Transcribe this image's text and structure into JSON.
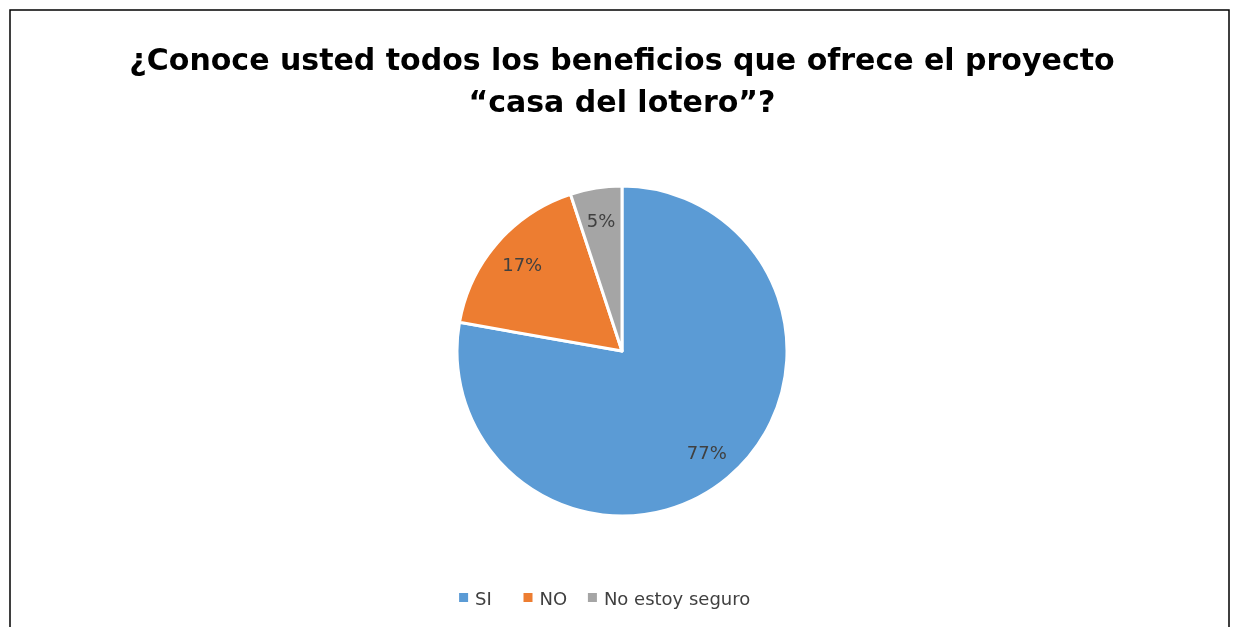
{
  "chart_data": {
    "type": "pie",
    "title": "¿Conoce usted todos los beneficios que ofrece el proyecto\n“casa del lotero”?",
    "categories": [
      "SI",
      "NO",
      "No estoy seguro"
    ],
    "values": [
      77,
      17,
      5
    ],
    "colors": [
      "#5b9bd5",
      "#ed7d31",
      "#a5a5a5"
    ],
    "value_labels": [
      "77%",
      "17%",
      "5%"
    ],
    "legend": "bottom"
  }
}
